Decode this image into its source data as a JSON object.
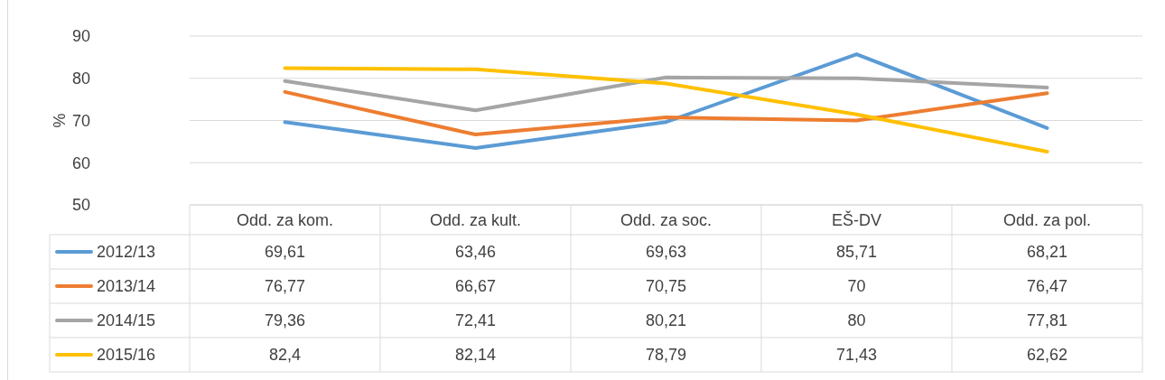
{
  "chart_data": {
    "type": "line",
    "ylabel": "%",
    "categories": [
      "Odd. za kom.",
      "Odd. za kult.",
      "Odd. za soc.",
      "EŠ-DV",
      "Odd. za pol."
    ],
    "series": [
      {
        "name": "2012/13",
        "color": "#5b9bd5",
        "values": [
          69.61,
          63.46,
          69.63,
          85.71,
          68.21
        ],
        "value_labels": [
          "69,61",
          "63,46",
          "69,63",
          "85,71",
          "68,21"
        ]
      },
      {
        "name": "2013/14",
        "color": "#ed7d31",
        "values": [
          76.77,
          66.67,
          70.75,
          70,
          76.47
        ],
        "value_labels": [
          "76,77",
          "66,67",
          "70,75",
          "70",
          "76,47"
        ]
      },
      {
        "name": "2014/15",
        "color": "#a5a5a5",
        "values": [
          79.36,
          72.41,
          80.21,
          80,
          77.81
        ],
        "value_labels": [
          "79,36",
          "72,41",
          "80,21",
          "80",
          "77,81"
        ]
      },
      {
        "name": "2015/16",
        "color": "#ffc000",
        "values": [
          82.4,
          82.14,
          78.79,
          71.43,
          62.62
        ],
        "value_labels": [
          "82,4",
          "82,14",
          "78,79",
          "71,43",
          "62,62"
        ]
      }
    ],
    "ylim": [
      50,
      90
    ],
    "yticks": [
      50,
      60,
      70,
      80,
      90
    ],
    "grid": "y",
    "legend": "bottom left",
    "marker": "none",
    "line_style": "solid"
  }
}
